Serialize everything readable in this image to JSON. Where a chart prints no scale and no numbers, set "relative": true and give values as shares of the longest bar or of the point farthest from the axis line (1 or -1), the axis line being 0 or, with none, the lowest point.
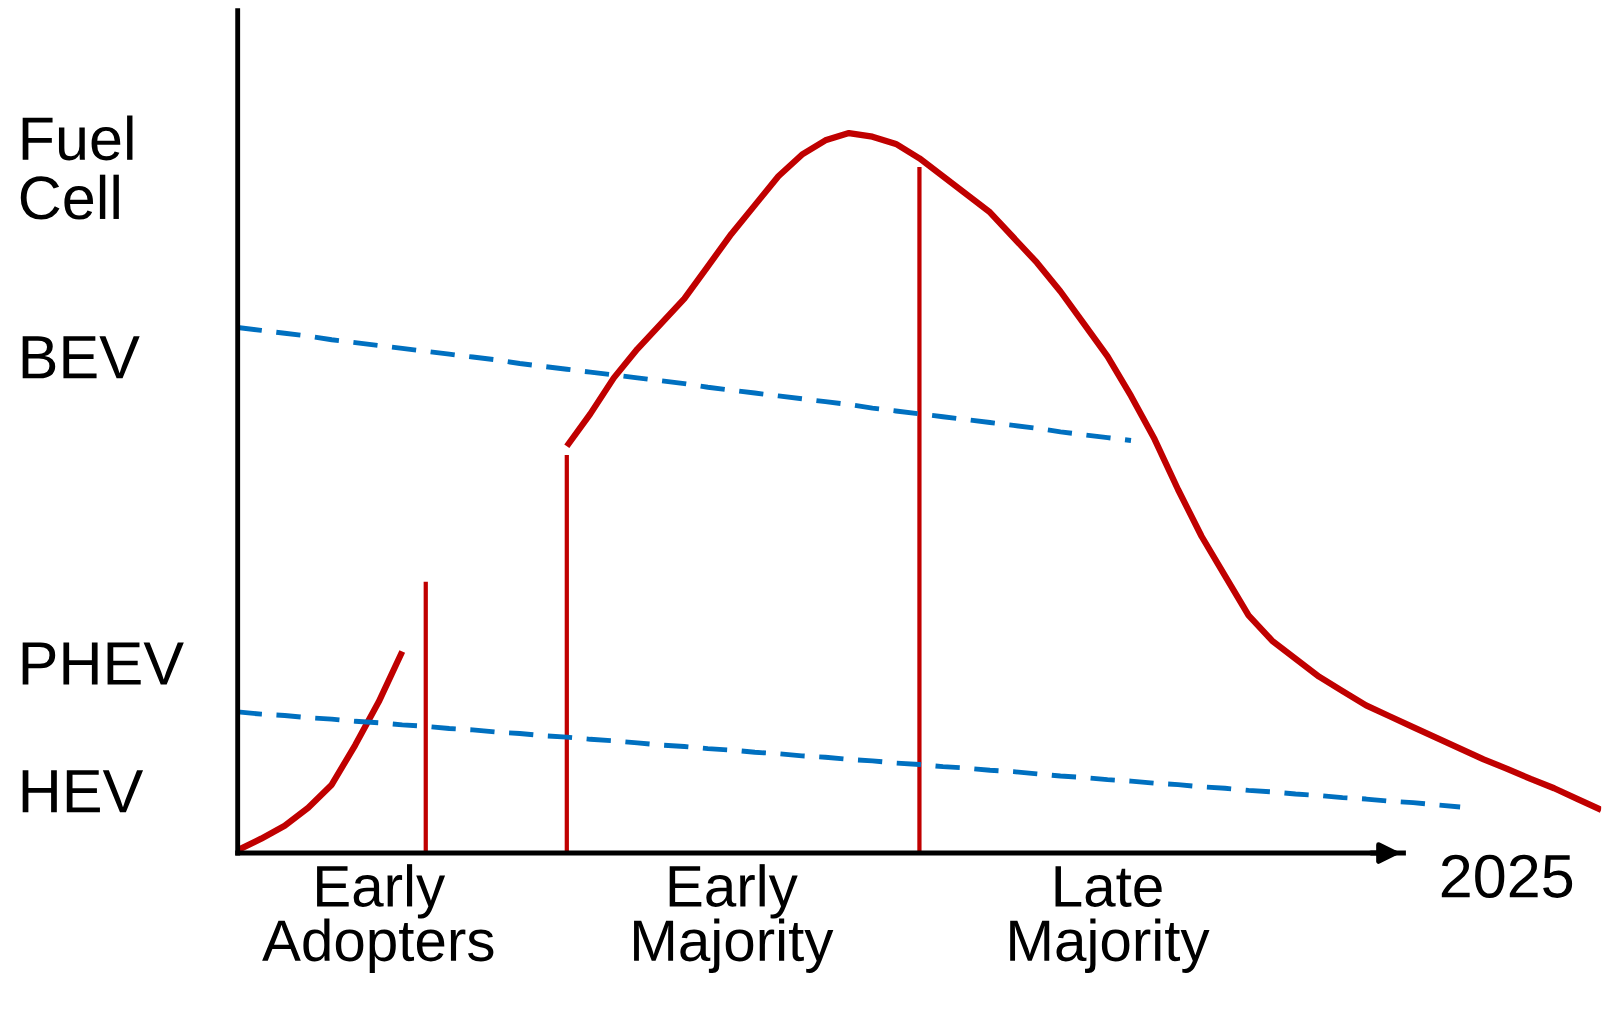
{
  "chart_data": {
    "type": "line",
    "relative": true,
    "xlabel": "2025",
    "categories": [
      null,
      null,
      null,
      null,
      null,
      null,
      "Early\nAdopters",
      null,
      null,
      null,
      null,
      null,
      null,
      null,
      null,
      null,
      null,
      null,
      null,
      null,
      null,
      "Early\nMajority",
      null,
      null,
      null,
      null,
      null,
      null,
      null,
      null,
      null,
      null,
      null,
      null,
      null,
      null,
      null,
      "Late\nMajority",
      null,
      null,
      null,
      null,
      null,
      null,
      null,
      null,
      null,
      null,
      null,
      null,
      null,
      null,
      null,
      null,
      null,
      null,
      null,
      null,
      null
    ],
    "annotations": [
      "Fuel\nCell",
      "BEV",
      "PHEV",
      "HEV"
    ],
    "grid": false,
    "legend": false,
    "series": [
      {
        "color": "#c00000",
        "line_style": "solid",
        "values": [
          0.004,
          0.02,
          0.038,
          0.063,
          0.095,
          0.15,
          0.21,
          0.28,
          null,
          null,
          null,
          null,
          null,
          null,
          null,
          null,
          null,
          null,
          null,
          null,
          null,
          null,
          null,
          null,
          null,
          null,
          null,
          null,
          null,
          null,
          null,
          null,
          null,
          null,
          null,
          null,
          null,
          null,
          null,
          null,
          null,
          null,
          null,
          null,
          null,
          null,
          null,
          null,
          null,
          null,
          null,
          null,
          null,
          null,
          null,
          null,
          null,
          null,
          null
        ]
      },
      {
        "type": "bar",
        "color": "#c00000",
        "values": [
          null,
          null,
          null,
          null,
          null,
          null,
          null,
          null,
          0.377,
          null,
          null,
          null,
          null,
          null,
          0.553,
          null,
          null,
          null,
          null,
          null,
          null,
          null,
          null,
          null,
          null,
          null,
          null,
          null,
          null,
          0.953,
          null,
          null,
          null,
          null,
          null,
          null,
          null,
          null,
          null,
          null,
          null,
          null,
          null,
          null,
          null,
          null,
          null,
          null,
          null,
          null,
          null,
          null,
          null,
          null,
          null,
          null,
          null,
          null,
          null
        ]
      },
      {
        "color": "#c00000",
        "line_style": "solid",
        "values": [
          null,
          null,
          null,
          null,
          null,
          null,
          null,
          null,
          null,
          null,
          null,
          null,
          null,
          null,
          0.565,
          0.61,
          0.66,
          0.7,
          0.735,
          0.77,
          0.815,
          0.86,
          0.9,
          0.94,
          0.97,
          0.99,
          1.0,
          0.995,
          0.985,
          0.965,
          0.94,
          0.915,
          0.89,
          0.855,
          0.82,
          0.78,
          0.735,
          0.69,
          0.635,
          0.575,
          0.505,
          0.44,
          0.385,
          0.33,
          0.295,
          0.27,
          0.245,
          0.225,
          0.205,
          0.19,
          0.175,
          0.16,
          0.145,
          0.13,
          0.117,
          0.103,
          0.09,
          0.075,
          0.06
        ]
      },
      {
        "color": "#0070c0",
        "line_style": "dashed",
        "values": [
          0.73,
          0.726,
          0.722,
          0.718,
          0.713,
          0.709,
          0.705,
          0.701,
          0.697,
          0.693,
          0.689,
          0.685,
          0.68,
          0.676,
          0.672,
          0.668,
          0.664,
          0.66,
          0.656,
          0.652,
          0.647,
          0.643,
          0.639,
          0.635,
          0.631,
          0.627,
          0.623,
          0.618,
          0.614,
          0.61,
          0.606,
          0.602,
          0.598,
          0.594,
          0.59,
          0.585,
          0.581,
          0.577,
          0.573,
          null,
          null,
          null,
          null,
          null,
          null,
          null,
          null,
          null,
          null,
          null,
          null,
          null,
          null,
          null,
          null,
          null,
          null,
          null,
          null
        ]
      },
      {
        "color": "#0070c0",
        "line_style": "dashed",
        "values": [
          0.196,
          0.193,
          0.191,
          0.188,
          0.186,
          0.183,
          0.181,
          0.178,
          0.176,
          0.173,
          0.171,
          0.168,
          0.166,
          0.163,
          0.161,
          0.158,
          0.156,
          0.153,
          0.15,
          0.148,
          0.145,
          0.143,
          0.14,
          0.138,
          0.135,
          0.133,
          0.13,
          0.128,
          0.125,
          0.123,
          0.12,
          0.118,
          0.115,
          0.113,
          0.11,
          0.107,
          0.105,
          0.102,
          0.1,
          0.097,
          0.095,
          0.092,
          0.09,
          0.087,
          0.085,
          0.082,
          0.08,
          0.077,
          0.075,
          0.072,
          0.07,
          0.067,
          0.064,
          null,
          null,
          null,
          null,
          null,
          null
        ]
      }
    ]
  }
}
